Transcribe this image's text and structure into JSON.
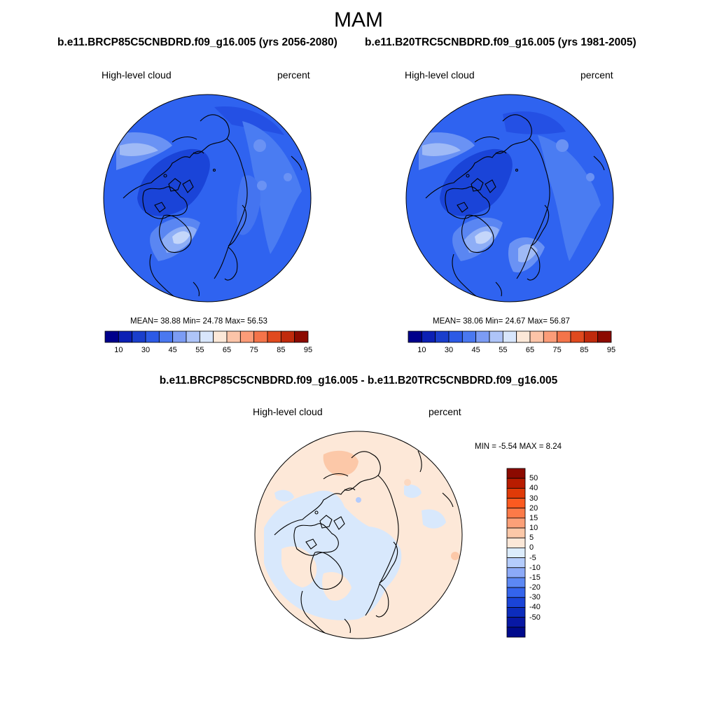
{
  "header": {
    "season": "MAM",
    "case_left": "b.e11.BRCP85C5CNBDRD.f09_g16.005 (yrs 2056-2080)",
    "case_right": "b.e11.B20TRC5CNBDRD.f09_g16.005 (yrs 1981-2005)",
    "diff_title": "b.e11.BRCP85C5CNBDRD.f09_g16.005 - b.e11.B20TRC5CNBDRD.f09_g16.005"
  },
  "panels": {
    "left": {
      "variable": "High-level cloud",
      "units": "percent",
      "stats": "MEAN=  38.88  Min=  24.78  Max=  56.53"
    },
    "right": {
      "variable": "High-level cloud",
      "units": "percent",
      "stats": "MEAN=  38.06  Min=  24.67  Max=  56.87"
    },
    "diff": {
      "variable": "High-level cloud",
      "units": "percent",
      "stats": "MIN =  -5.54 MAX =   8.24"
    }
  },
  "colorbar_abs": {
    "colors": [
      "#00008b",
      "#0c20b4",
      "#1a3ecc",
      "#2c5ae6",
      "#4a78f0",
      "#7c9cf4",
      "#aec4f8",
      "#d8e6fc",
      "#fce8d8",
      "#fcc4a8",
      "#fc9c78",
      "#f4744a",
      "#e04a1e",
      "#c02a0c",
      "#8c0a00"
    ],
    "tick_labels": [
      "10",
      "30",
      "45",
      "55",
      "65",
      "75",
      "85",
      "95"
    ]
  },
  "colorbar_diff": {
    "colors": [
      "#8c0a00",
      "#b81c00",
      "#e03a08",
      "#fc5a20",
      "#fc7a48",
      "#fca078",
      "#fcc8a8",
      "#fce8d8",
      "#dcecfc",
      "#b4ccfc",
      "#8caaf8",
      "#5c88f4",
      "#3464ec",
      "#1a44d8",
      "#0c2cbc",
      "#0818a4",
      "#000a8c"
    ],
    "tick_labels": [
      "50",
      "40",
      "30",
      "20",
      "15",
      "10",
      "5",
      "0",
      "-5",
      "-10",
      "-15",
      "-20",
      "-30",
      "-40",
      "-50"
    ]
  },
  "map_colors": {
    "base_future": "#2f63f0",
    "base_past": "#2f63f0",
    "deep": "#1a44d8",
    "light": "#4a7cf2",
    "lighter": "#7ea0f4",
    "pale": "#b8cdf8",
    "diff_base": "#fde8d8",
    "diff_blue": "#d8e8fc",
    "diff_warm": "#fcd0b4"
  }
}
